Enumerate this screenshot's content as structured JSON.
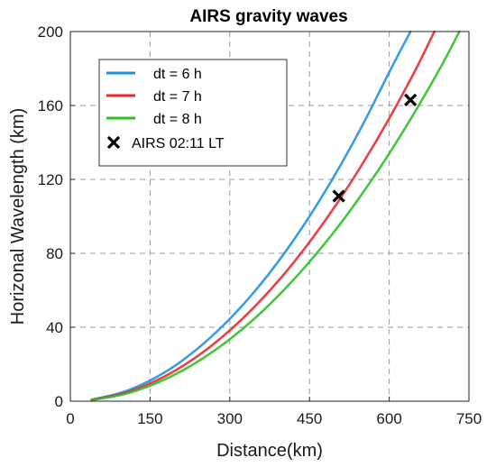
{
  "chart_data": {
    "type": "line",
    "title": "AIRS gravity waves",
    "xlabel": "Distance(km)",
    "ylabel": "Horizonal Wavelength (km)",
    "xlim": [
      0,
      750
    ],
    "ylim": [
      0,
      200
    ],
    "xticks": [
      0,
      150,
      300,
      450,
      600,
      750
    ],
    "yticks": [
      0,
      40,
      80,
      120,
      160,
      200
    ],
    "grid": true,
    "legend_position": "top-left",
    "series": [
      {
        "name": "dt = 6 h",
        "color": "#1f8fe0",
        "x": [
          40,
          100,
          150,
          200,
          250,
          300,
          350,
          400,
          450,
          500,
          550,
          600,
          640
        ],
        "y": [
          0.8,
          5.0,
          11.2,
          19.8,
          31.0,
          44.5,
          60.5,
          79.0,
          100.0,
          123.5,
          149.5,
          178.0,
          200.0
        ]
      },
      {
        "name": "dt = 7 h",
        "color": "#e8262b",
        "x": [
          40,
          100,
          150,
          200,
          250,
          300,
          350,
          400,
          450,
          500,
          550,
          600,
          650,
          685
        ],
        "y": [
          0.7,
          4.3,
          9.6,
          17.0,
          26.6,
          38.3,
          52.1,
          68.0,
          86.1,
          106.3,
          128.6,
          153.0,
          179.6,
          200.0
        ]
      },
      {
        "name": "dt = 8 h",
        "color": "#2ebd24",
        "x": [
          40,
          100,
          150,
          200,
          250,
          300,
          350,
          400,
          450,
          500,
          550,
          600,
          650,
          700,
          732
        ],
        "y": [
          0.6,
          3.7,
          8.4,
          14.9,
          23.3,
          33.5,
          45.6,
          59.6,
          75.4,
          93.0,
          112.6,
          134.0,
          157.3,
          182.4,
          200.0
        ]
      },
      {
        "name": "AIRS 02:11 LT",
        "color": "#000000",
        "marker": "x",
        "x": [
          505,
          640
        ],
        "y": [
          111,
          163
        ]
      }
    ]
  }
}
